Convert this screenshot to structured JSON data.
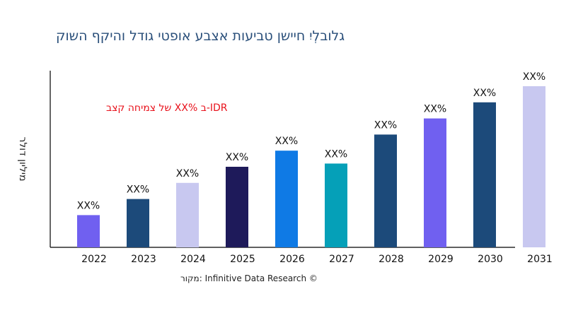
{
  "title": "קושה ףקיהו לדוג יטפוא עבצא תועיבט ןשייח יִלְבולג",
  "source": "רוקמ: Infinitive Data Research ©",
  "chart_data": {
    "type": "bar",
    "title": "קושה ףקיהו לדוג יטפוא עבצא תועיבט ןשייח יִלְבולג",
    "ylabel": "רלוד ןוילימ",
    "xlabel": "",
    "annotation": "בצק החימצ לש XX% ב-IDR",
    "categories": [
      "2022",
      "2023",
      "2024",
      "2025",
      "2026",
      "2027",
      "2028",
      "2029",
      "2030",
      "2031"
    ],
    "values": [
      20,
      30,
      40,
      50,
      60,
      52,
      70,
      80,
      90,
      100
    ],
    "data_labels": [
      "XX%",
      "XX%",
      "XX%",
      "XX%",
      "XX%",
      "XX%",
      "XX%",
      "XX%",
      "XX%",
      "XX%"
    ],
    "colors": [
      "#7060f0",
      "#1c4a7a",
      "#c8c8f0",
      "#1e1a5a",
      "#0f7ae5",
      "#05a0b8",
      "#1c4a7a",
      "#7060f0",
      "#1c4a7a",
      "#c8c8f0"
    ],
    "ylim": [
      0,
      110
    ],
    "grid": false,
    "legend": "none"
  }
}
